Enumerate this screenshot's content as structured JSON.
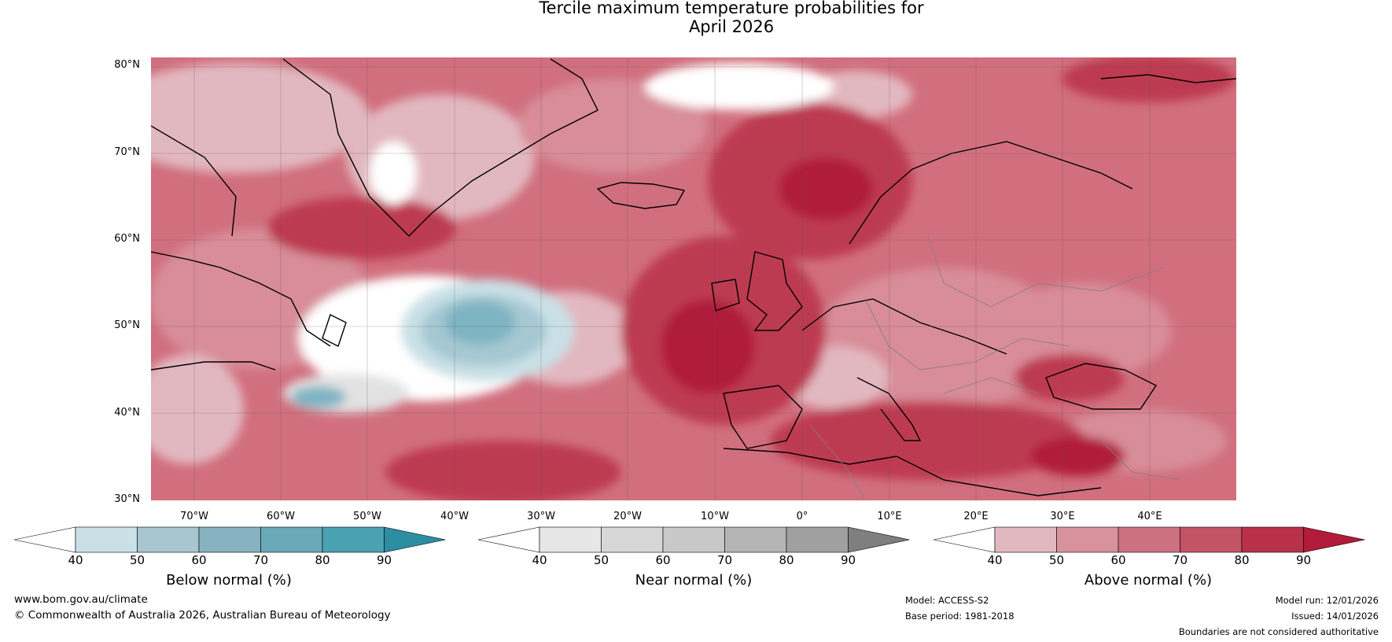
{
  "title": {
    "line1": "Tercile maximum temperature probabilities for",
    "line2": "April 2026"
  },
  "map": {
    "lat_labels": [
      "80°N",
      "70°N",
      "60°N",
      "50°N",
      "40°N",
      "30°N"
    ],
    "lon_labels": [
      "70°W",
      "60°W",
      "50°W",
      "40°W",
      "30°W",
      "20°W",
      "10°W",
      "0°",
      "10°E",
      "20°E",
      "30°E",
      "40°E"
    ],
    "extent": {
      "lon_min": -75,
      "lon_max": 50,
      "lat_min": 30,
      "lat_max": 80
    },
    "colors": {
      "ocean_base": "#d16f7e",
      "above_50": "#e2b8c0",
      "above_60": "#d88d99",
      "above_70": "#ca6474",
      "above_80": "#bd3a51",
      "above_90": "#b01c3a",
      "near": "#e2e2e2",
      "below_50": "#c9e0e6",
      "below_60": "#a6c8d2",
      "below_70": "#7fb4c3",
      "below_80": "#4ea4b5",
      "coast": "#000000",
      "border": "#808080"
    }
  },
  "colorbars": [
    {
      "name": "below",
      "label": "Below normal (%)",
      "ticks": [
        "40",
        "50",
        "60",
        "70",
        "80",
        "90"
      ],
      "colors": [
        "#ffffff",
        "#c9e0e7",
        "#a7c6cf",
        "#88b2c0",
        "#69a9b8",
        "#4aa1b2",
        "#2c8da3"
      ]
    },
    {
      "name": "near",
      "label": "Near normal (%)",
      "ticks": [
        "40",
        "50",
        "60",
        "70",
        "80",
        "90"
      ],
      "colors": [
        "#ffffff",
        "#e6e6e6",
        "#d7d7d7",
        "#c8c8c8",
        "#b5b5b5",
        "#a0a0a0",
        "#7f7f7f"
      ]
    },
    {
      "name": "above",
      "label": "Above normal (%)",
      "ticks": [
        "40",
        "50",
        "60",
        "70",
        "80",
        "90"
      ],
      "colors": [
        "#ffffff",
        "#e2b8c0",
        "#d8929d",
        "#cc717f",
        "#c25465",
        "#b83148",
        "#b01c3a"
      ]
    }
  ],
  "footer": {
    "website": "www.bom.gov.au/climate",
    "copyright": "© Commonwealth of Australia 2026, Australian Bureau of Meteorology",
    "model": "Model: ACCESS-S2",
    "base_period": "Base period: 1981-2018",
    "model_run": "Model run: 12/01/2026",
    "issued": "Issued: 14/01/2026",
    "disclaimer": "Boundaries are not considered authoritative"
  }
}
